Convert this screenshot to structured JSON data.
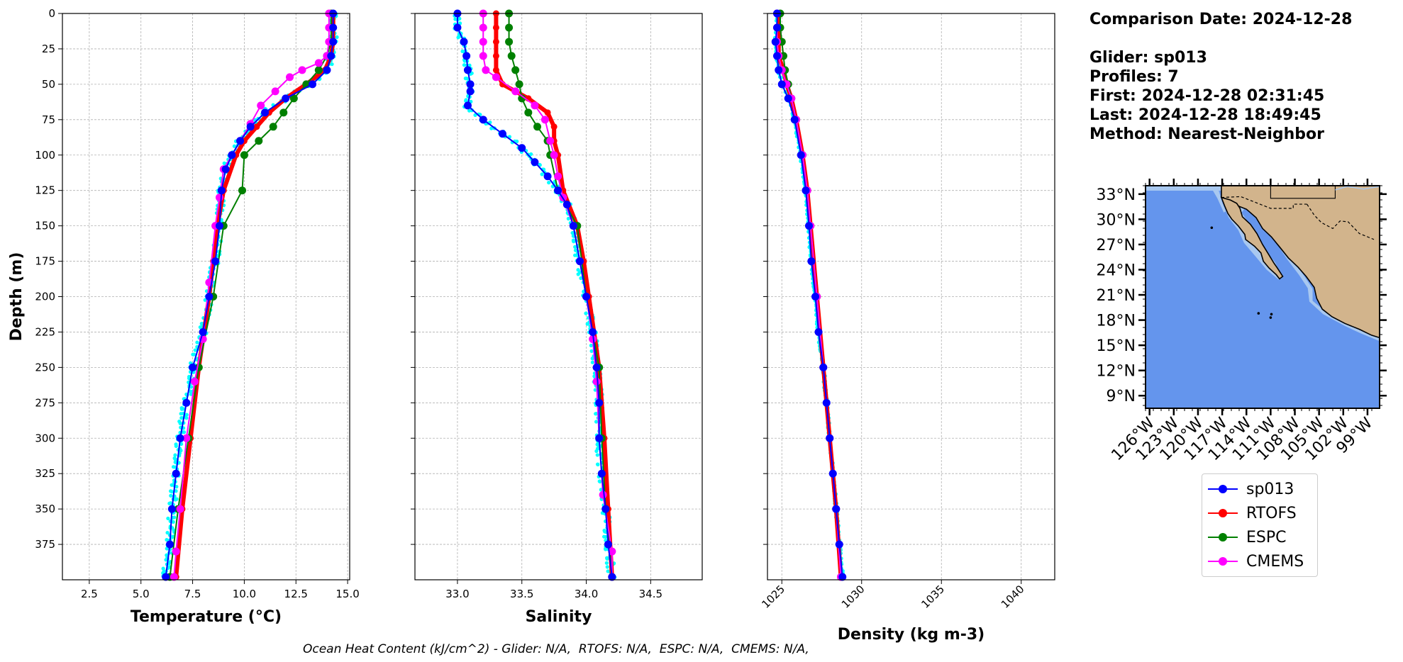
{
  "info": {
    "comparison_date": "Comparison Date: 2024-12-28",
    "glider": "Glider: sp013",
    "profiles": "Profiles: 7",
    "first": "First: 2024-12-28 02:31:45",
    "last": "Last: 2024-12-28 18:49:45",
    "method": "Method: Nearest-Neighbor"
  },
  "footer": "Ocean Heat Content (kJ/cm^2) - Glider: N/A,  RTOFS: N/A,  ESPC: N/A,  CMEMS: N/A,",
  "colors": {
    "sp013": "#0000ff",
    "rtofs": "#ff0000",
    "espc": "#008000",
    "cmems": "#ff00ff",
    "glider_raw": "#00ffff",
    "ocean": "#6495ed",
    "shelf": "#a8c8f0",
    "land": "#d2b48c"
  },
  "legend": [
    {
      "name": "sp013",
      "color": "#0000ff"
    },
    {
      "name": "RTOFS",
      "color": "#ff0000"
    },
    {
      "name": "ESPC",
      "color": "#008000"
    },
    {
      "name": "CMEMS",
      "color": "#ff00ff"
    }
  ],
  "chart_data": [
    {
      "type": "line",
      "panel": "temperature",
      "xlabel": "Temperature (°C)",
      "ylabel": "Depth (m)",
      "xlim": [
        1.2,
        15.1
      ],
      "ylim": [
        400,
        0
      ],
      "xticks": [
        2.5,
        5.0,
        7.5,
        10.0,
        12.5,
        15.0
      ],
      "xtick_labels": [
        "2.5",
        "5.0",
        "7.5",
        "10.0",
        "12.5",
        "15.0"
      ],
      "yticks": [
        0,
        25,
        50,
        75,
        100,
        125,
        150,
        175,
        200,
        225,
        250,
        275,
        300,
        325,
        350,
        375
      ],
      "ytick_labels": [
        "0",
        "25",
        "50",
        "75",
        "100",
        "125",
        "150",
        "175",
        "200",
        "225",
        "250",
        "275",
        "300",
        "325",
        "350",
        "375"
      ],
      "grid": true,
      "series": [
        {
          "name": "sp013",
          "depth": [
            0,
            10,
            20,
            30,
            40,
            50,
            60,
            70,
            80,
            90,
            100,
            110,
            125,
            150,
            175,
            200,
            225,
            250,
            275,
            300,
            325,
            350,
            375,
            398
          ],
          "values": [
            14.3,
            14.3,
            14.3,
            14.2,
            14.0,
            13.3,
            12.0,
            11.0,
            10.3,
            9.8,
            9.4,
            9.1,
            8.9,
            8.8,
            8.6,
            8.3,
            8.0,
            7.5,
            7.2,
            6.9,
            6.7,
            6.5,
            6.4,
            6.2
          ]
        },
        {
          "name": "RTOFS",
          "depth": [
            0,
            10,
            20,
            30,
            40,
            50,
            60,
            70,
            80,
            90,
            100,
            125,
            150,
            175,
            200,
            250,
            300,
            350,
            398
          ],
          "values": [
            14.3,
            14.3,
            14.3,
            14.2,
            13.9,
            13.0,
            12.0,
            11.2,
            10.6,
            10.0,
            9.6,
            9.0,
            8.7,
            8.5,
            8.3,
            7.8,
            7.4,
            7.0,
            6.7
          ]
        },
        {
          "name": "ESPC",
          "depth": [
            0,
            10,
            20,
            30,
            40,
            50,
            60,
            70,
            80,
            90,
            100,
            125,
            150,
            200,
            250,
            300,
            350,
            398
          ],
          "values": [
            14.2,
            14.2,
            14.2,
            14.0,
            13.6,
            13.0,
            12.4,
            11.9,
            11.4,
            10.7,
            10.0,
            9.9,
            9.0,
            8.5,
            7.8,
            7.3,
            6.8,
            6.4
          ]
        },
        {
          "name": "CMEMS",
          "depth": [
            0,
            10,
            20,
            30,
            35,
            40,
            45,
            55,
            65,
            78,
            90,
            100,
            110,
            130,
            150,
            190,
            230,
            260,
            300,
            350,
            380,
            398
          ],
          "values": [
            14.1,
            14.1,
            14.1,
            14.0,
            13.6,
            12.8,
            12.2,
            11.5,
            10.8,
            10.3,
            9.8,
            9.4,
            9.0,
            8.8,
            8.6,
            8.3,
            8.0,
            7.6,
            7.2,
            6.9,
            6.7,
            6.6
          ]
        }
      ]
    },
    {
      "type": "line",
      "panel": "salinity",
      "xlabel": "Salinity",
      "xlim": [
        32.67,
        34.9
      ],
      "ylim": [
        400,
        0
      ],
      "xticks": [
        33.0,
        33.5,
        34.0,
        34.5
      ],
      "xtick_labels": [
        "33.0",
        "33.5",
        "34.0",
        "34.5"
      ],
      "grid": true,
      "series": [
        {
          "name": "sp013",
          "depth": [
            0,
            10,
            20,
            30,
            40,
            50,
            55,
            65,
            75,
            85,
            95,
            105,
            115,
            125,
            135,
            150,
            175,
            200,
            225,
            250,
            275,
            300,
            325,
            350,
            375,
            398
          ],
          "values": [
            33.0,
            33.0,
            33.05,
            33.07,
            33.08,
            33.1,
            33.1,
            33.08,
            33.2,
            33.35,
            33.5,
            33.6,
            33.7,
            33.78,
            33.85,
            33.9,
            33.95,
            34.0,
            34.05,
            34.08,
            34.1,
            34.1,
            34.12,
            34.15,
            34.17,
            34.2
          ]
        },
        {
          "name": "RTOFS",
          "depth": [
            0,
            10,
            20,
            30,
            40,
            50,
            60,
            70,
            80,
            90,
            100,
            125,
            150,
            175,
            200,
            250,
            300,
            350,
            398
          ],
          "values": [
            33.3,
            33.3,
            33.3,
            33.3,
            33.3,
            33.35,
            33.55,
            33.7,
            33.75,
            33.75,
            33.78,
            33.82,
            33.93,
            33.98,
            34.02,
            34.1,
            34.14,
            34.17,
            34.2
          ]
        },
        {
          "name": "ESPC",
          "depth": [
            0,
            10,
            20,
            30,
            40,
            50,
            60,
            70,
            80,
            90,
            100,
            125,
            150,
            200,
            250,
            300,
            350,
            398
          ],
          "values": [
            33.4,
            33.4,
            33.4,
            33.42,
            33.45,
            33.48,
            33.5,
            33.55,
            33.62,
            33.7,
            33.72,
            33.78,
            33.93,
            34.0,
            34.1,
            34.12,
            34.15,
            34.2
          ]
        },
        {
          "name": "CMEMS",
          "depth": [
            0,
            10,
            20,
            30,
            40,
            45,
            55,
            65,
            75,
            90,
            100,
            115,
            130,
            150,
            175,
            200,
            230,
            260,
            300,
            340,
            380,
            398
          ],
          "values": [
            33.2,
            33.2,
            33.2,
            33.2,
            33.22,
            33.3,
            33.45,
            33.6,
            33.68,
            33.72,
            33.75,
            33.78,
            33.82,
            33.9,
            33.95,
            34.0,
            34.05,
            34.08,
            34.1,
            34.13,
            34.2,
            34.2
          ]
        }
      ]
    },
    {
      "type": "line",
      "panel": "density",
      "xlabel": "Density (kg m-3)",
      "xlim": [
        1024.1,
        1042.1
      ],
      "ylim": [
        400,
        0
      ],
      "xticks": [
        1025,
        1030,
        1035,
        1040
      ],
      "xtick_labels": [
        "1025",
        "1030",
        "1035",
        "1040"
      ],
      "grid": true,
      "series": [
        {
          "name": "sp013",
          "depth": [
            0,
            10,
            20,
            30,
            40,
            50,
            60,
            75,
            100,
            125,
            150,
            175,
            200,
            225,
            250,
            275,
            300,
            325,
            350,
            375,
            398
          ],
          "values": [
            1024.7,
            1024.7,
            1024.6,
            1024.7,
            1024.8,
            1025.0,
            1025.4,
            1025.8,
            1026.2,
            1026.5,
            1026.7,
            1026.85,
            1027.1,
            1027.3,
            1027.6,
            1027.8,
            1028.0,
            1028.2,
            1028.4,
            1028.6,
            1028.8
          ]
        },
        {
          "name": "RTOFS",
          "depth": [
            0,
            10,
            20,
            30,
            40,
            50,
            60,
            75,
            100,
            125,
            150,
            200,
            250,
            300,
            350,
            398
          ],
          "values": [
            1024.8,
            1024.8,
            1024.8,
            1024.8,
            1025.1,
            1025.3,
            1025.6,
            1025.9,
            1026.3,
            1026.6,
            1026.8,
            1027.2,
            1027.6,
            1028.0,
            1028.4,
            1028.7
          ]
        },
        {
          "name": "ESPC",
          "depth": [
            0,
            10,
            20,
            30,
            40,
            50,
            60,
            75,
            100,
            125,
            150,
            200,
            250,
            300,
            350,
            398
          ],
          "values": [
            1024.9,
            1024.9,
            1025.0,
            1025.1,
            1025.2,
            1025.4,
            1025.6,
            1025.9,
            1026.3,
            1026.6,
            1026.8,
            1027.2,
            1027.6,
            1028.0,
            1028.4,
            1028.7
          ]
        },
        {
          "name": "CMEMS",
          "depth": [
            0,
            10,
            20,
            30,
            40,
            50,
            60,
            75,
            100,
            125,
            150,
            200,
            250,
            300,
            350,
            398
          ],
          "values": [
            1024.7,
            1024.7,
            1024.7,
            1024.8,
            1025.0,
            1025.3,
            1025.6,
            1025.9,
            1026.3,
            1026.6,
            1026.8,
            1027.2,
            1027.6,
            1028.0,
            1028.4,
            1028.7
          ]
        }
      ]
    },
    {
      "type": "map",
      "panel": "location",
      "lat_ticks": [
        "33°N",
        "30°N",
        "27°N",
        "24°N",
        "21°N",
        "18°N",
        "15°N",
        "12°N",
        "9°N"
      ],
      "lon_ticks": [
        "126°W",
        "123°W",
        "120°W",
        "117°W",
        "114°W",
        "111°W",
        "108°W",
        "105°W",
        "102°W",
        "99°W"
      ],
      "lat_range": [
        7.5,
        34
      ],
      "lon_range": [
        -126.5,
        -97.5
      ]
    }
  ]
}
